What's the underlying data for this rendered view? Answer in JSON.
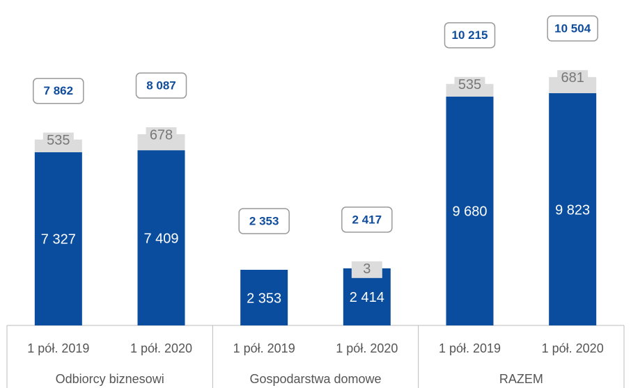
{
  "chart_data": {
    "type": "stacked_bar",
    "categories": [
      "1 pół. 2019",
      "1 pół. 2020",
      "1 pół. 2019",
      "1 pół. 2020",
      "1 pół. 2019",
      "1 pół. 2020"
    ],
    "groups": [
      "Odbiorcy biznesowi",
      "Gospodarstwa domowe",
      "RAZEM"
    ],
    "series": [
      {
        "color": "#0a4d9e",
        "values": [
          7327,
          7409,
          2353,
          2414,
          9680,
          9823
        ],
        "value_labels": [
          "7 327",
          "7 409",
          "2 353",
          "2 414",
          "9 680",
          "9 823"
        ]
      },
      {
        "color": "#dcdcdc",
        "values": [
          535,
          678,
          null,
          3,
          535,
          681
        ]
      }
    ],
    "totals": {
      "values": [
        7862,
        8087,
        2353,
        2417,
        10215,
        10504
      ],
      "value_labels": [
        "7 862",
        "8 087",
        "2 353",
        "2 417",
        "10 215",
        "10 504"
      ]
    },
    "ylim": [
      0,
      12000
    ]
  }
}
